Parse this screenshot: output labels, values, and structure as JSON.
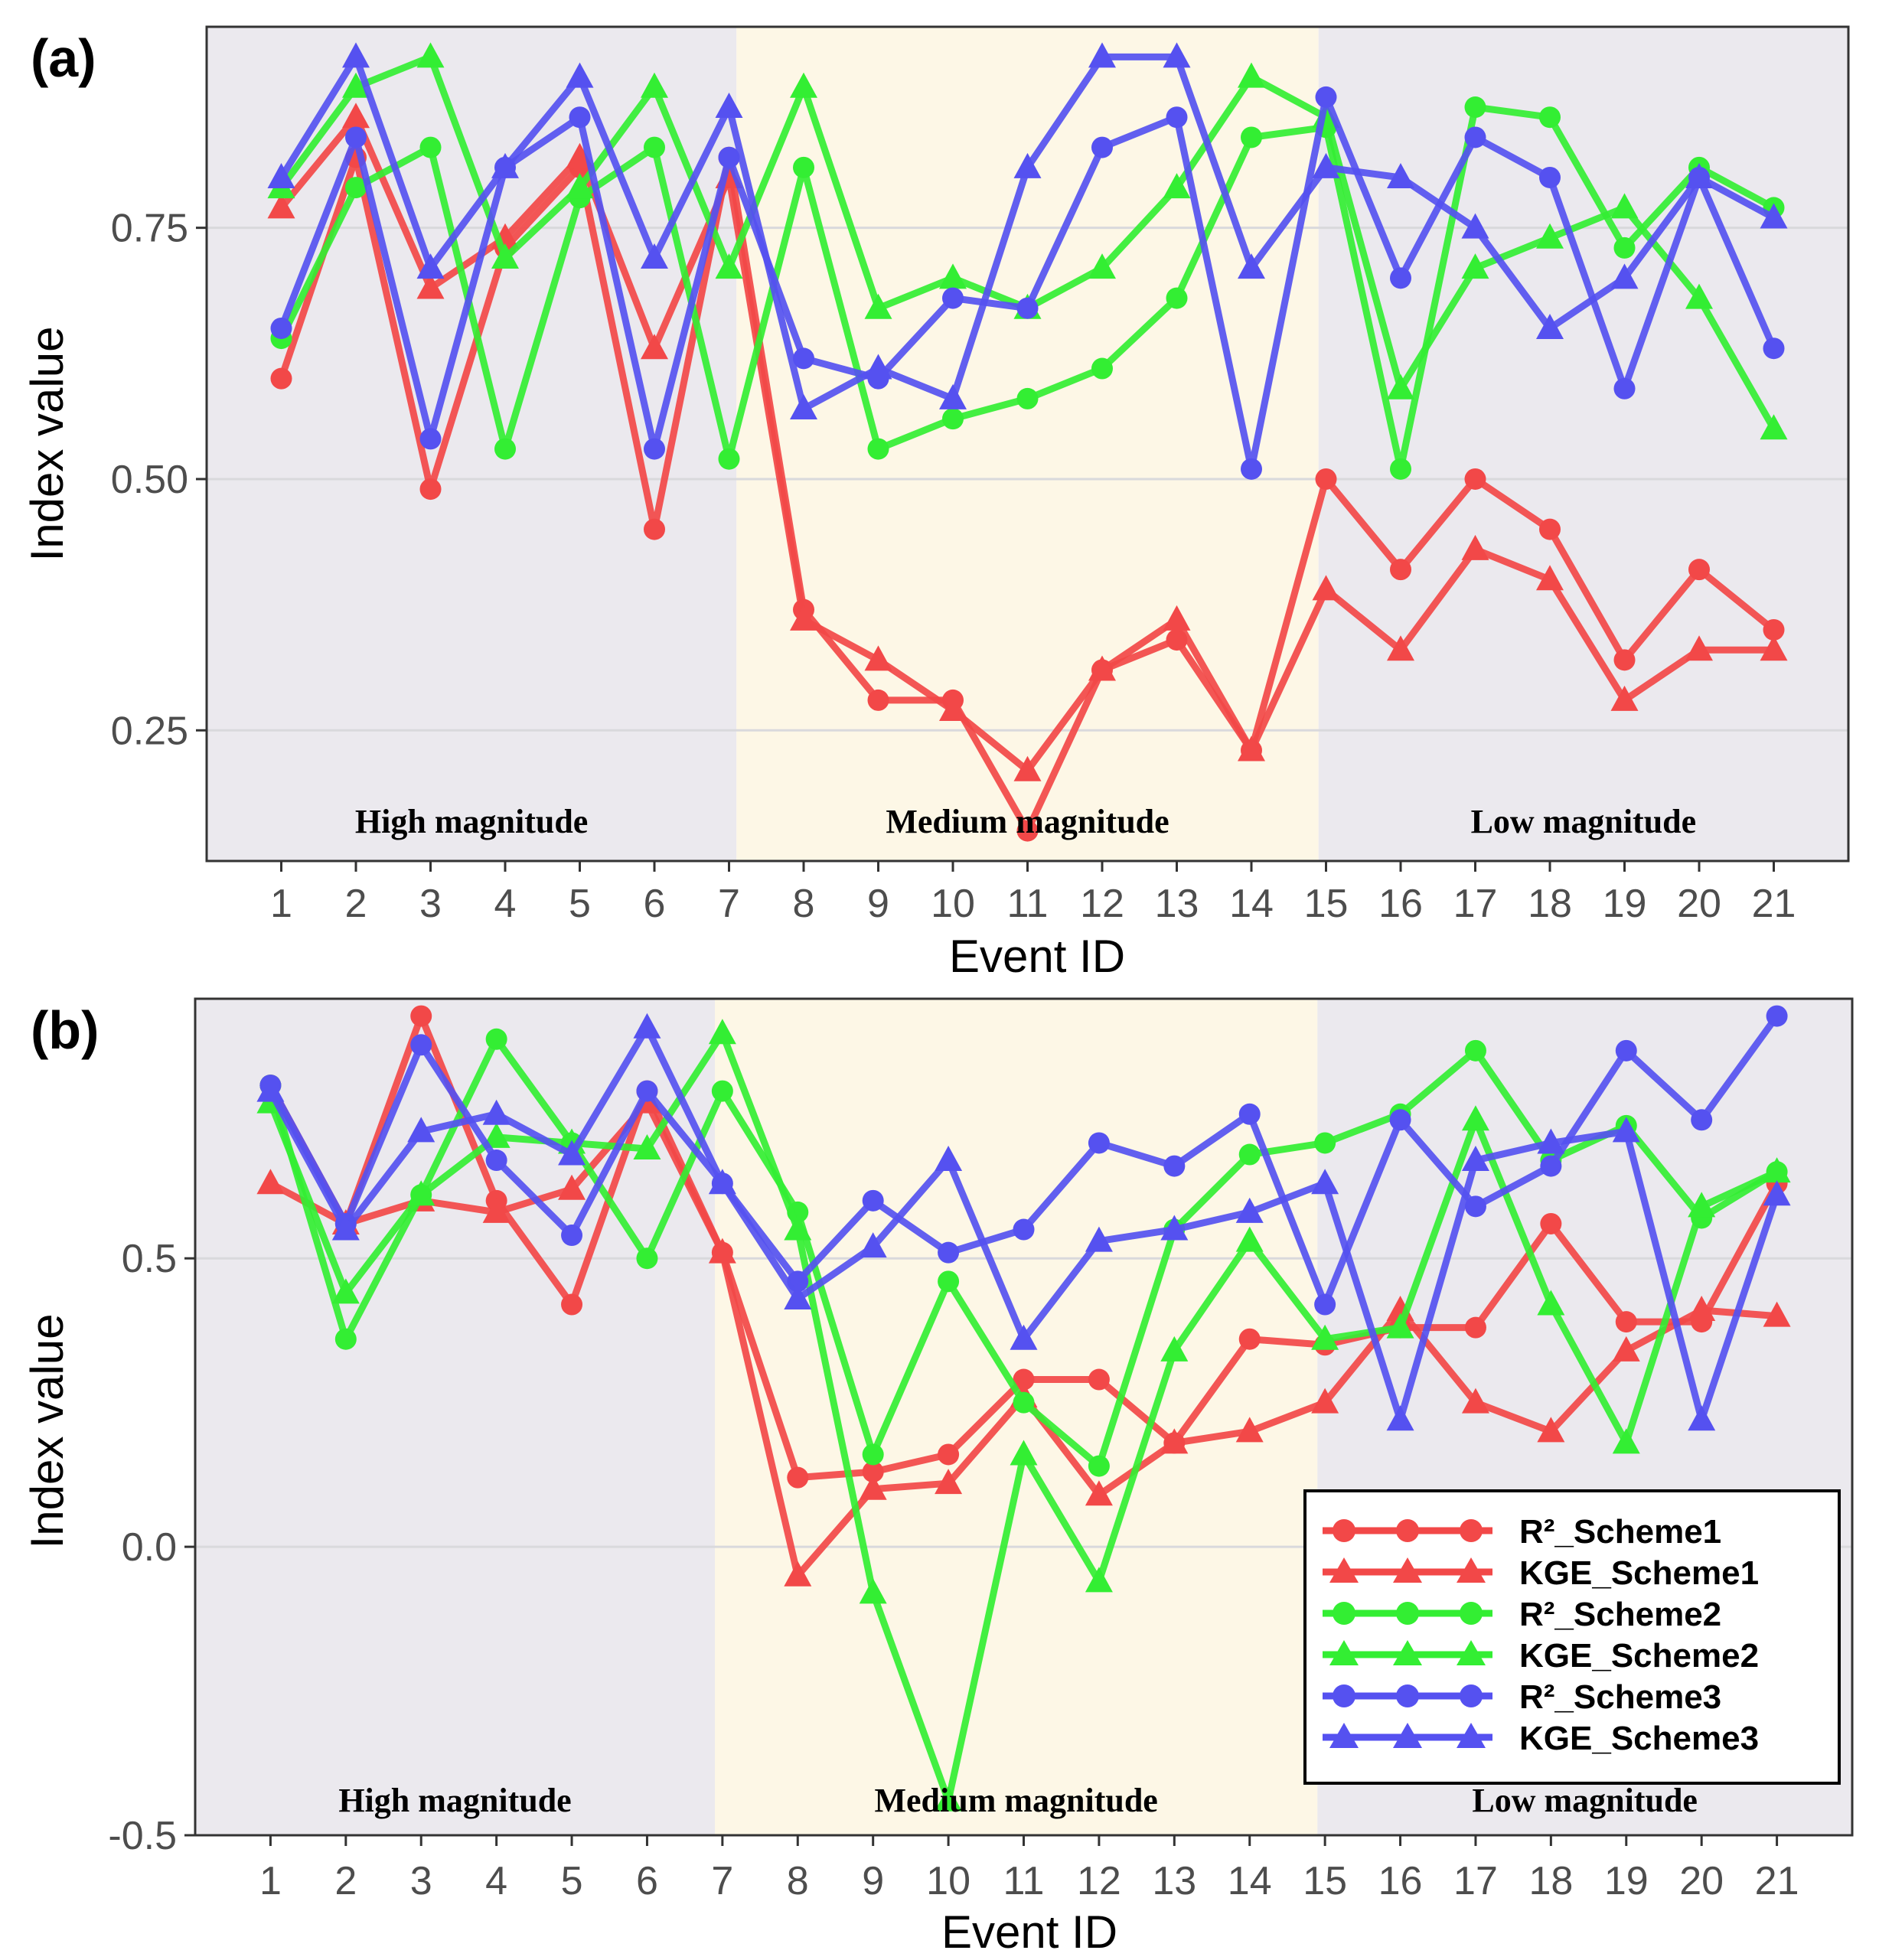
{
  "chart_data": [
    {
      "panel_label": "(a)",
      "type": "line",
      "xlabel": "Event ID",
      "ylabel": "Index value",
      "x": [
        1,
        2,
        3,
        4,
        5,
        6,
        7,
        8,
        9,
        10,
        11,
        12,
        13,
        14,
        15,
        16,
        17,
        18,
        19,
        20,
        21
      ],
      "x_tick_labels": [
        "1",
        "2",
        "3",
        "4",
        "5",
        "6",
        "7",
        "8",
        "9",
        "10",
        "11",
        "12",
        "13",
        "14",
        "15",
        "16",
        "17",
        "18",
        "19",
        "20",
        "21"
      ],
      "y_ticks": [
        0.25,
        0.5,
        0.75
      ],
      "y_tick_labels": [
        "0.25",
        "0.50",
        "0.75"
      ],
      "ylim": [
        0.12,
        0.95
      ],
      "xlim": [
        0,
        22
      ],
      "grid": true,
      "zones": [
        {
          "label": "High magnitude",
          "from": 0,
          "to": 7.1,
          "color": "#ebe9ee"
        },
        {
          "label": "Medium magnitude",
          "from": 7.1,
          "to": 14.9,
          "color": "#fdf7e6"
        },
        {
          "label": "Low magnitude",
          "from": 14.9,
          "to": 22,
          "color": "#ebe9ee"
        }
      ],
      "series": [
        {
          "name": "R²_Scheme1",
          "color": "#f24848",
          "marker": "circle",
          "values": [
            0.6,
            0.82,
            0.49,
            0.73,
            0.81,
            0.45,
            0.82,
            0.37,
            0.28,
            0.28,
            0.15,
            0.31,
            0.34,
            0.23,
            0.5,
            0.41,
            0.5,
            0.45,
            0.32,
            0.41,
            0.35
          ]
        },
        {
          "name": "KGE_Scheme1",
          "color": "#f24848",
          "marker": "triangle",
          "values": [
            0.77,
            0.86,
            0.69,
            0.74,
            0.82,
            0.63,
            0.8,
            0.36,
            0.32,
            0.27,
            0.21,
            0.31,
            0.36,
            0.23,
            0.39,
            0.33,
            0.43,
            0.4,
            0.28,
            0.33,
            0.33
          ]
        },
        {
          "name": "R²_Scheme2",
          "color": "#33ee33",
          "marker": "circle",
          "values": [
            0.64,
            0.79,
            0.83,
            0.53,
            0.78,
            0.83,
            0.52,
            0.81,
            0.53,
            0.56,
            0.58,
            0.61,
            0.68,
            0.84,
            0.85,
            0.51,
            0.87,
            0.86,
            0.73,
            0.81,
            0.77
          ]
        },
        {
          "name": "KGE_Scheme2",
          "color": "#33ee33",
          "marker": "triangle",
          "values": [
            0.79,
            0.89,
            0.92,
            0.72,
            0.79,
            0.89,
            0.71,
            0.89,
            0.67,
            0.7,
            0.67,
            0.71,
            0.79,
            0.9,
            0.86,
            0.59,
            0.71,
            0.74,
            0.77,
            0.68,
            0.55
          ]
        },
        {
          "name": "R²_Scheme3",
          "color": "#5551f0",
          "marker": "circle",
          "values": [
            0.65,
            0.84,
            0.54,
            0.81,
            0.86,
            0.53,
            0.82,
            0.62,
            0.6,
            0.68,
            0.67,
            0.83,
            0.86,
            0.51,
            0.88,
            0.7,
            0.84,
            0.8,
            0.59,
            0.8,
            0.63
          ]
        },
        {
          "name": "KGE_Scheme3",
          "color": "#5551f0",
          "marker": "triangle",
          "values": [
            0.8,
            0.92,
            0.71,
            0.81,
            0.9,
            0.72,
            0.87,
            0.57,
            0.61,
            0.58,
            0.81,
            0.92,
            0.92,
            0.71,
            0.81,
            0.8,
            0.75,
            0.65,
            0.7,
            0.8,
            0.76
          ]
        }
      ]
    },
    {
      "panel_label": "(b)",
      "type": "line",
      "xlabel": "Event ID",
      "ylabel": "Index value",
      "x": [
        1,
        2,
        3,
        4,
        5,
        6,
        7,
        8,
        9,
        10,
        11,
        12,
        13,
        14,
        15,
        16,
        17,
        18,
        19,
        20,
        21
      ],
      "x_tick_labels": [
        "1",
        "2",
        "3",
        "4",
        "5",
        "6",
        "7",
        "8",
        "9",
        "10",
        "11",
        "12",
        "13",
        "14",
        "15",
        "16",
        "17",
        "18",
        "19",
        "20",
        "21"
      ],
      "y_ticks": [
        -0.5,
        0.0,
        0.5
      ],
      "y_tick_labels": [
        "-0.5",
        "0.0",
        "0.5"
      ],
      "ylim": [
        -0.5,
        0.95
      ],
      "xlim": [
        0,
        22
      ],
      "grid": true,
      "zones": [
        {
          "label": "High magnitude",
          "from": 0,
          "to": 6.9,
          "color": "#ebe9ee"
        },
        {
          "label": "Medium magnitude",
          "from": 6.9,
          "to": 14.9,
          "color": "#fdf7e6"
        },
        {
          "label": "Low magnitude",
          "from": 14.9,
          "to": 22,
          "color": "#ebe9ee"
        }
      ],
      "series": [
        {
          "name": "R²_Scheme1",
          "color": "#f24848",
          "marker": "circle",
          "values": [
            0.8,
            0.56,
            0.92,
            0.6,
            0.42,
            0.79,
            0.51,
            0.12,
            0.13,
            0.16,
            0.29,
            0.29,
            0.18,
            0.36,
            0.35,
            0.38,
            0.38,
            0.56,
            0.39,
            0.39,
            0.63
          ]
        },
        {
          "name": "KGE_Scheme1",
          "color": "#f24848",
          "marker": "triangle",
          "values": [
            0.63,
            0.56,
            0.6,
            0.58,
            0.62,
            0.77,
            0.51,
            -0.05,
            0.1,
            0.11,
            0.26,
            0.09,
            0.18,
            0.2,
            0.25,
            0.41,
            0.25,
            0.2,
            0.34,
            0.41,
            0.4
          ]
        },
        {
          "name": "R²_Scheme2",
          "color": "#33ee33",
          "marker": "circle",
          "values": [
            0.8,
            0.36,
            0.61,
            0.88,
            0.7,
            0.5,
            0.79,
            0.58,
            0.16,
            0.46,
            0.25,
            0.14,
            0.55,
            0.68,
            0.7,
            0.75,
            0.86,
            0.67,
            0.73,
            0.57,
            0.65
          ]
        },
        {
          "name": "KGE_Scheme2",
          "color": "#33ee33",
          "marker": "triangle",
          "values": [
            0.77,
            0.44,
            0.61,
            0.71,
            0.7,
            0.69,
            0.89,
            0.55,
            -0.08,
            -0.44,
            0.16,
            -0.06,
            0.34,
            0.53,
            0.36,
            0.38,
            0.74,
            0.42,
            0.18,
            0.59,
            0.65
          ]
        },
        {
          "name": "R²_Scheme3",
          "color": "#5551f0",
          "marker": "circle",
          "values": [
            0.8,
            0.56,
            0.87,
            0.67,
            0.54,
            0.79,
            0.63,
            0.46,
            0.6,
            0.51,
            0.55,
            0.7,
            0.66,
            0.75,
            0.42,
            0.74,
            0.59,
            0.66,
            0.86,
            0.74,
            0.92
          ]
        },
        {
          "name": "KGE_Scheme3",
          "color": "#5551f0",
          "marker": "triangle",
          "values": [
            0.79,
            0.55,
            0.72,
            0.75,
            0.68,
            0.9,
            0.63,
            0.43,
            0.52,
            0.67,
            0.36,
            0.53,
            0.55,
            0.58,
            0.63,
            0.22,
            0.67,
            0.7,
            0.72,
            0.22,
            0.61
          ]
        }
      ]
    }
  ]
}
